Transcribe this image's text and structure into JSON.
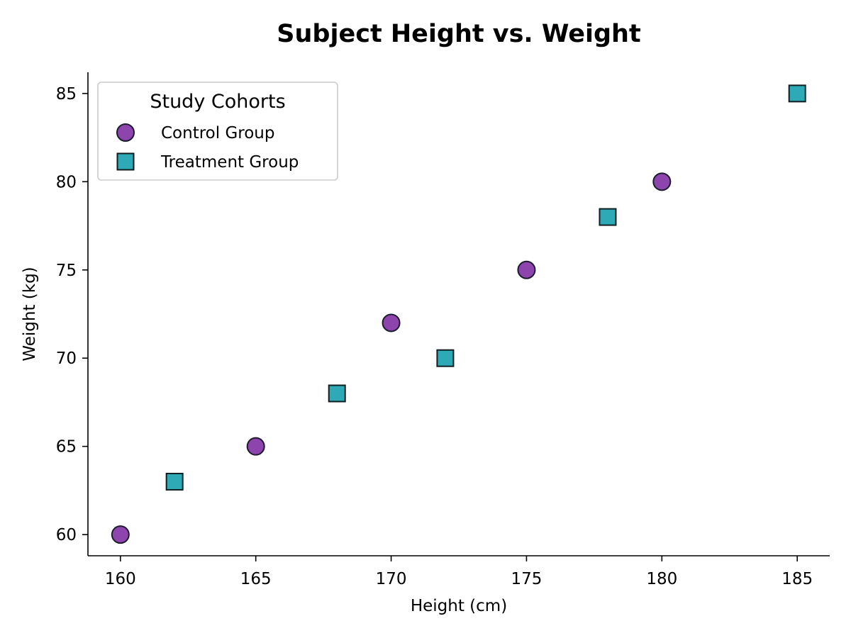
{
  "chart_data": {
    "type": "scatter",
    "title": "Subject Height vs. Weight",
    "xlabel": "Height (cm)",
    "ylabel": "Weight (kg)",
    "xlim": [
      158.8,
      186.2
    ],
    "ylim": [
      58.8,
      86.2
    ],
    "xticks": [
      160,
      165,
      170,
      175,
      180,
      185
    ],
    "yticks": [
      60,
      65,
      70,
      75,
      80,
      85
    ],
    "grid": false,
    "legend": {
      "title": "Study Cohorts",
      "position": "top-left"
    },
    "series": [
      {
        "name": "Control Group",
        "marker": "circle",
        "color": "#8e44ad",
        "edge_color": "#1c1c2e",
        "x": [
          160,
          165,
          170,
          175,
          180
        ],
        "y": [
          60,
          65,
          72,
          75,
          80
        ]
      },
      {
        "name": "Treatment Group",
        "marker": "square",
        "color": "#2eaab6",
        "edge_color": "#0f1e22",
        "x": [
          162,
          168,
          172,
          178,
          185
        ],
        "y": [
          63,
          68,
          70,
          78,
          85
        ]
      }
    ]
  }
}
